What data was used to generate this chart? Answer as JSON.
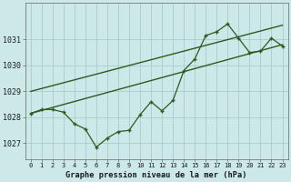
{
  "bg_color": "#cce8e8",
  "grid_color": "#a8cccc",
  "line_color": "#2d5a1e",
  "title": "Graphe pression niveau de la mer (hPa)",
  "ylabel_ticks": [
    1027,
    1028,
    1029,
    1030,
    1031
  ],
  "ylim": [
    1026.4,
    1032.4
  ],
  "xlim": [
    -0.5,
    23.5
  ],
  "xticks": [
    0,
    1,
    2,
    3,
    4,
    5,
    6,
    7,
    8,
    9,
    10,
    11,
    12,
    13,
    14,
    15,
    16,
    17,
    18,
    19,
    20,
    21,
    22,
    23
  ],
  "jagged": {
    "x": [
      0,
      1,
      2,
      3,
      4,
      5,
      6,
      7,
      8,
      9,
      10,
      11,
      12,
      13,
      14,
      15,
      16,
      17,
      18,
      19,
      20,
      21,
      22,
      23
    ],
    "y": [
      1028.15,
      1028.3,
      1028.3,
      1028.2,
      1027.75,
      1027.55,
      1026.85,
      1027.2,
      1027.45,
      1027.5,
      1028.1,
      1028.6,
      1028.25,
      1028.65,
      1029.8,
      1030.25,
      1031.15,
      1031.3,
      1031.6,
      1031.05,
      1030.5,
      1030.55,
      1031.05,
      1030.75
    ]
  },
  "trend_upper": {
    "x": [
      0,
      23
    ],
    "y": [
      1029.0,
      1031.55
    ]
  },
  "trend_lower": {
    "x": [
      0,
      23
    ],
    "y": [
      1028.15,
      1030.8
    ]
  }
}
